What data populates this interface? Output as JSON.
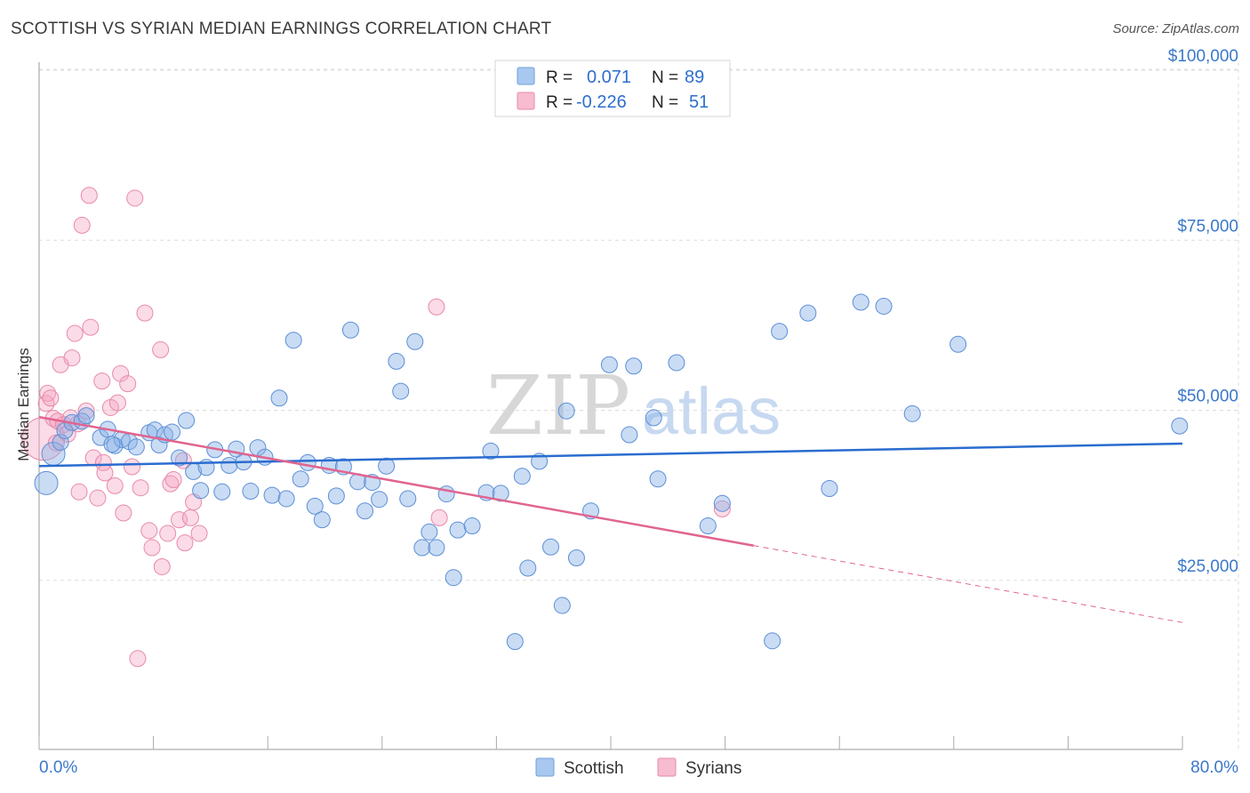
{
  "header": {
    "title": "SCOTTISH VS SYRIAN MEDIAN EARNINGS CORRELATION CHART",
    "source": "Source: ZipAtlas.com"
  },
  "watermark": {
    "zip": "ZIP",
    "atlas": "atlas"
  },
  "legend_top": {
    "rows": [
      {
        "r_label": "R =",
        "r_value": "0.071",
        "n_label": "N =",
        "n_value": "89",
        "color": "#a9c8f0",
        "border": "#6f9fd8"
      },
      {
        "r_label": "R =",
        "r_value": "-0.226",
        "n_label": "N =",
        "n_value": "51",
        "color": "#f7bcd0",
        "border": "#e88aa8"
      }
    ]
  },
  "legend_bottom": [
    {
      "label": "Scottish",
      "color": "#a9c8f0",
      "border": "#6f9fd8"
    },
    {
      "label": "Syrians",
      "color": "#f7bcd0",
      "border": "#e88aa8"
    }
  ],
  "colors": {
    "scottish_fill": "rgba(137,178,230,0.45)",
    "scottish_stroke": "#5b8fd6",
    "syrian_fill": "rgba(244,166,194,0.40)",
    "syrian_stroke": "#e889aa",
    "scottish_line": "#2a6ccf",
    "syrian_line": "#e06590",
    "tick_text": "#3b78c9"
  },
  "chart_data": {
    "type": "scatter",
    "title": "SCOTTISH VS SYRIAN MEDIAN EARNINGS CORRELATION CHART",
    "ylabel": "Median Earnings",
    "xlabel": "",
    "xlim": [
      0,
      80
    ],
    "ylim": [
      0,
      102000
    ],
    "x_tick_labels": [
      "0.0%",
      "80.0%"
    ],
    "y_ticks": [
      {
        "value": 25000,
        "label": "$25,000"
      },
      {
        "value": 50000,
        "label": "$50,000"
      },
      {
        "value": 75000,
        "label": "$75,000"
      },
      {
        "value": 100000,
        "label": "$100,000"
      }
    ],
    "grid": true,
    "legend": "top-center",
    "series": [
      {
        "name": "Scottish",
        "r": 0.071,
        "n": 89,
        "trend": {
          "x": [
            0,
            80
          ],
          "y": [
            41800,
            45100
          ]
        },
        "points": [
          {
            "x": 0.5,
            "y": 39300,
            "s": 2
          },
          {
            "x": 1.0,
            "y": 43600,
            "s": 2
          },
          {
            "x": 1.5,
            "y": 45300,
            "s": 1
          },
          {
            "x": 1.8,
            "y": 47000,
            "s": 1
          },
          {
            "x": 2.3,
            "y": 48200,
            "s": 1
          },
          {
            "x": 3.0,
            "y": 48400,
            "s": 1
          },
          {
            "x": 3.3,
            "y": 49200,
            "s": 1
          },
          {
            "x": 4.3,
            "y": 46000,
            "s": 1
          },
          {
            "x": 4.8,
            "y": 47200,
            "s": 1
          },
          {
            "x": 5.3,
            "y": 44800,
            "s": 1
          },
          {
            "x": 5.8,
            "y": 45700,
            "s": 1
          },
          {
            "x": 6.3,
            "y": 45400,
            "s": 1
          },
          {
            "x": 6.8,
            "y": 44600,
            "s": 1
          },
          {
            "x": 7.7,
            "y": 46700,
            "s": 1
          },
          {
            "x": 8.1,
            "y": 47100,
            "s": 1
          },
          {
            "x": 8.4,
            "y": 44900,
            "s": 1
          },
          {
            "x": 8.8,
            "y": 46400,
            "s": 1
          },
          {
            "x": 9.3,
            "y": 46800,
            "s": 1
          },
          {
            "x": 9.8,
            "y": 43000,
            "s": 1
          },
          {
            "x": 10.3,
            "y": 48500,
            "s": 1
          },
          {
            "x": 10.8,
            "y": 41000,
            "s": 1
          },
          {
            "x": 11.3,
            "y": 38200,
            "s": 1
          },
          {
            "x": 11.7,
            "y": 41600,
            "s": 1
          },
          {
            "x": 12.3,
            "y": 44200,
            "s": 1
          },
          {
            "x": 12.8,
            "y": 38000,
            "s": 1
          },
          {
            "x": 13.3,
            "y": 41900,
            "s": 1
          },
          {
            "x": 13.8,
            "y": 44300,
            "s": 1
          },
          {
            "x": 14.3,
            "y": 42400,
            "s": 1
          },
          {
            "x": 14.8,
            "y": 38100,
            "s": 1
          },
          {
            "x": 15.3,
            "y": 44500,
            "s": 1
          },
          {
            "x": 15.8,
            "y": 43100,
            "s": 1
          },
          {
            "x": 16.3,
            "y": 37500,
            "s": 1
          },
          {
            "x": 16.8,
            "y": 51800,
            "s": 1
          },
          {
            "x": 17.3,
            "y": 37000,
            "s": 1
          },
          {
            "x": 17.8,
            "y": 60300,
            "s": 1
          },
          {
            "x": 18.3,
            "y": 39900,
            "s": 1
          },
          {
            "x": 18.8,
            "y": 42300,
            "s": 1
          },
          {
            "x": 19.3,
            "y": 35900,
            "s": 1
          },
          {
            "x": 19.8,
            "y": 33900,
            "s": 1
          },
          {
            "x": 20.3,
            "y": 41900,
            "s": 1
          },
          {
            "x": 20.8,
            "y": 37400,
            "s": 1
          },
          {
            "x": 21.3,
            "y": 41700,
            "s": 1
          },
          {
            "x": 21.8,
            "y": 61800,
            "s": 1
          },
          {
            "x": 22.3,
            "y": 39500,
            "s": 1
          },
          {
            "x": 22.8,
            "y": 35200,
            "s": 1
          },
          {
            "x": 23.3,
            "y": 39400,
            "s": 1
          },
          {
            "x": 23.8,
            "y": 36900,
            "s": 1
          },
          {
            "x": 24.3,
            "y": 41800,
            "s": 1
          },
          {
            "x": 25.0,
            "y": 57200,
            "s": 1
          },
          {
            "x": 25.3,
            "y": 52800,
            "s": 1
          },
          {
            "x": 25.8,
            "y": 37000,
            "s": 1
          },
          {
            "x": 26.3,
            "y": 60100,
            "s": 1
          },
          {
            "x": 26.8,
            "y": 29800,
            "s": 1
          },
          {
            "x": 27.3,
            "y": 32100,
            "s": 1
          },
          {
            "x": 27.8,
            "y": 29800,
            "s": 1
          },
          {
            "x": 28.5,
            "y": 37700,
            "s": 1
          },
          {
            "x": 29.0,
            "y": 25400,
            "s": 1
          },
          {
            "x": 29.3,
            "y": 32400,
            "s": 1
          },
          {
            "x": 30.3,
            "y": 33000,
            "s": 1
          },
          {
            "x": 31.3,
            "y": 37900,
            "s": 1
          },
          {
            "x": 31.6,
            "y": 44000,
            "s": 1
          },
          {
            "x": 32.3,
            "y": 37800,
            "s": 1
          },
          {
            "x": 33.3,
            "y": 16000,
            "s": 1
          },
          {
            "x": 33.8,
            "y": 40300,
            "s": 1
          },
          {
            "x": 34.2,
            "y": 26800,
            "s": 1
          },
          {
            "x": 35.0,
            "y": 42500,
            "s": 1
          },
          {
            "x": 35.8,
            "y": 29900,
            "s": 1
          },
          {
            "x": 36.6,
            "y": 21300,
            "s": 1
          },
          {
            "x": 36.9,
            "y": 49900,
            "s": 1
          },
          {
            "x": 37.6,
            "y": 28300,
            "s": 1
          },
          {
            "x": 38.6,
            "y": 35200,
            "s": 1
          },
          {
            "x": 39.9,
            "y": 56700,
            "s": 1
          },
          {
            "x": 41.3,
            "y": 46400,
            "s": 1
          },
          {
            "x": 41.6,
            "y": 56500,
            "s": 1
          },
          {
            "x": 43.0,
            "y": 48900,
            "s": 1
          },
          {
            "x": 43.3,
            "y": 39900,
            "s": 1
          },
          {
            "x": 44.6,
            "y": 57000,
            "s": 1
          },
          {
            "x": 46.8,
            "y": 33000,
            "s": 1
          },
          {
            "x": 47.8,
            "y": 36300,
            "s": 1
          },
          {
            "x": 51.3,
            "y": 16100,
            "s": 1
          },
          {
            "x": 51.8,
            "y": 61600,
            "s": 1
          },
          {
            "x": 53.8,
            "y": 64300,
            "s": 1
          },
          {
            "x": 55.3,
            "y": 38500,
            "s": 1
          },
          {
            "x": 57.5,
            "y": 65900,
            "s": 1
          },
          {
            "x": 59.1,
            "y": 65300,
            "s": 1
          },
          {
            "x": 61.1,
            "y": 49500,
            "s": 1
          },
          {
            "x": 64.3,
            "y": 59700,
            "s": 1
          },
          {
            "x": 79.8,
            "y": 47700,
            "s": 1
          },
          {
            "x": 5.1,
            "y": 45000,
            "s": 1
          }
        ]
      },
      {
        "name": "Syrians",
        "r": -0.226,
        "n": 51,
        "trend": {
          "x": [
            0,
            50
          ],
          "y": [
            49000,
            30100
          ],
          "dashed_to": {
            "x": 80,
            "y": 18800
          }
        },
        "points": [
          {
            "x": 0.3,
            "y": 45800,
            "s": 3
          },
          {
            "x": 0.5,
            "y": 51000,
            "s": 1
          },
          {
            "x": 0.6,
            "y": 52500,
            "s": 1
          },
          {
            "x": 0.8,
            "y": 51800,
            "s": 1
          },
          {
            "x": 1.0,
            "y": 48800,
            "s": 1
          },
          {
            "x": 1.3,
            "y": 48400,
            "s": 1
          },
          {
            "x": 1.5,
            "y": 56700,
            "s": 1
          },
          {
            "x": 1.7,
            "y": 47900,
            "s": 1
          },
          {
            "x": 2.0,
            "y": 46500,
            "s": 1
          },
          {
            "x": 2.2,
            "y": 48900,
            "s": 1
          },
          {
            "x": 2.3,
            "y": 57700,
            "s": 1
          },
          {
            "x": 2.5,
            "y": 61300,
            "s": 1
          },
          {
            "x": 2.7,
            "y": 48000,
            "s": 1
          },
          {
            "x": 2.8,
            "y": 38000,
            "s": 1
          },
          {
            "x": 3.0,
            "y": 77200,
            "s": 1
          },
          {
            "x": 3.3,
            "y": 49900,
            "s": 1
          },
          {
            "x": 3.5,
            "y": 81600,
            "s": 1
          },
          {
            "x": 3.6,
            "y": 62200,
            "s": 1
          },
          {
            "x": 3.8,
            "y": 43000,
            "s": 1
          },
          {
            "x": 4.1,
            "y": 37100,
            "s": 1
          },
          {
            "x": 4.4,
            "y": 54300,
            "s": 1
          },
          {
            "x": 4.5,
            "y": 42300,
            "s": 1
          },
          {
            "x": 4.6,
            "y": 40800,
            "s": 1
          },
          {
            "x": 5.0,
            "y": 50400,
            "s": 1
          },
          {
            "x": 5.3,
            "y": 38900,
            "s": 1
          },
          {
            "x": 5.5,
            "y": 51100,
            "s": 1
          },
          {
            "x": 5.7,
            "y": 55400,
            "s": 1
          },
          {
            "x": 5.9,
            "y": 34900,
            "s": 1
          },
          {
            "x": 6.2,
            "y": 53900,
            "s": 1
          },
          {
            "x": 6.5,
            "y": 41700,
            "s": 1
          },
          {
            "x": 6.7,
            "y": 81200,
            "s": 1
          },
          {
            "x": 6.9,
            "y": 13500,
            "s": 1
          },
          {
            "x": 7.1,
            "y": 38600,
            "s": 1
          },
          {
            "x": 7.4,
            "y": 64300,
            "s": 1
          },
          {
            "x": 7.7,
            "y": 32300,
            "s": 1
          },
          {
            "x": 7.9,
            "y": 29800,
            "s": 1
          },
          {
            "x": 8.5,
            "y": 58900,
            "s": 1
          },
          {
            "x": 8.6,
            "y": 27000,
            "s": 1
          },
          {
            "x": 9.0,
            "y": 31900,
            "s": 1
          },
          {
            "x": 9.2,
            "y": 39200,
            "s": 1
          },
          {
            "x": 9.4,
            "y": 39800,
            "s": 1
          },
          {
            "x": 9.8,
            "y": 33900,
            "s": 1
          },
          {
            "x": 10.1,
            "y": 42600,
            "s": 1
          },
          {
            "x": 10.2,
            "y": 30500,
            "s": 1
          },
          {
            "x": 10.6,
            "y": 34200,
            "s": 1
          },
          {
            "x": 10.8,
            "y": 36500,
            "s": 1
          },
          {
            "x": 11.2,
            "y": 31900,
            "s": 1
          },
          {
            "x": 27.8,
            "y": 65200,
            "s": 1
          },
          {
            "x": 28.0,
            "y": 34200,
            "s": 1
          },
          {
            "x": 47.8,
            "y": 35500,
            "s": 1
          },
          {
            "x": 1.2,
            "y": 45200,
            "s": 1
          }
        ]
      }
    ]
  }
}
